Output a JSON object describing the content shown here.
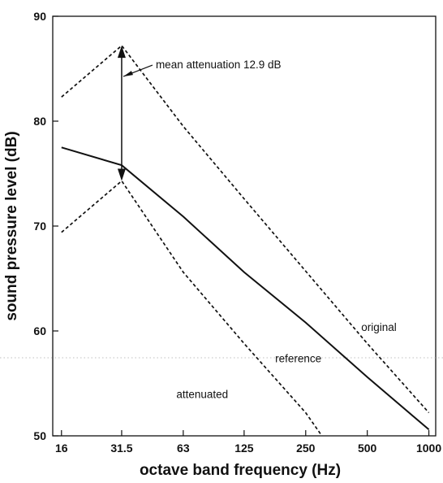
{
  "chart_data": {
    "type": "line",
    "title": "",
    "xlabel": "octave band frequency (Hz)",
    "ylabel": "sound pressure level (dB)",
    "x_scale": "log2",
    "categories": [
      "16",
      "31.5",
      "63",
      "125",
      "250",
      "500",
      "1000"
    ],
    "x_range_hz": [
      14.5,
      1080
    ],
    "ylim": [
      50,
      90
    ],
    "y_ticks": [
      "50",
      "60",
      "70",
      "80",
      "90"
    ],
    "grid": false,
    "legend": "none",
    "series": [
      {
        "name": "original",
        "style": "dashed",
        "points": [
          [
            16,
            82.3
          ],
          [
            31.5,
            87.2
          ],
          [
            63,
            79.5
          ],
          [
            125,
            72.6
          ],
          [
            250,
            65.7
          ],
          [
            500,
            58.8
          ],
          [
            1000,
            52.2
          ]
        ]
      },
      {
        "name": "reference",
        "style": "solid",
        "points": [
          [
            16,
            77.5
          ],
          [
            31.5,
            75.8
          ],
          [
            63,
            70.9
          ],
          [
            125,
            65.6
          ],
          [
            250,
            60.8
          ],
          [
            500,
            55.6
          ],
          [
            1000,
            50.6
          ]
        ]
      },
      {
        "name": "attenuated",
        "style": "dashed",
        "points": [
          [
            16,
            69.4
          ],
          [
            31.5,
            74.3
          ],
          [
            63,
            65.6
          ],
          [
            125,
            58.8
          ],
          [
            250,
            52.2
          ],
          [
            300,
            50.0
          ]
        ]
      }
    ],
    "annotations": [
      {
        "text": "mean attenuation 12.9 dB",
        "type": "double-arrow",
        "x": 31.5,
        "y_from": 87.2,
        "y_to": 74.3
      },
      {
        "text": "original",
        "x": 570,
        "y": 60.0
      },
      {
        "text": "reference",
        "x": 230,
        "y": 57.0
      },
      {
        "text": "attenuated",
        "x": 78,
        "y": 53.6
      }
    ]
  }
}
